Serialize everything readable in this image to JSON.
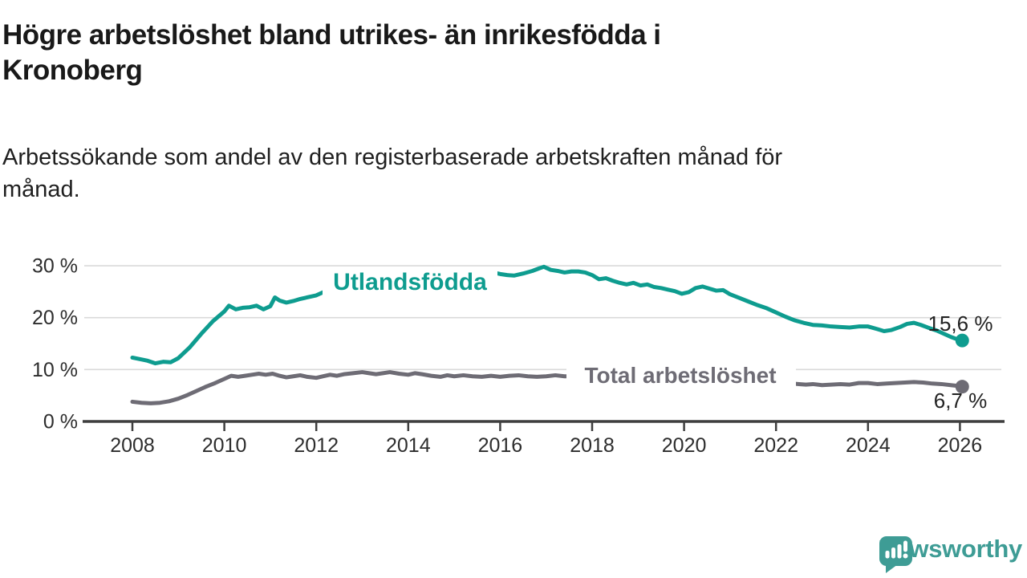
{
  "header": {
    "title_lines": [
      "Högre arbetslöshet bland utrikes- än inrikesfödda i",
      "Kronoberg"
    ],
    "subtitle_lines": [
      "Arbetssökande som andel av den registerbaserade arbetskraften månad för",
      "månad."
    ]
  },
  "chart_data": {
    "type": "line",
    "unit": "%",
    "grid": "horizontal-only",
    "grid_color": "#dadada",
    "axis_color": "#3e3e3e",
    "x_axis": {
      "min": 2008,
      "max": 2026.4,
      "ticks": [
        2008,
        2010,
        2012,
        2014,
        2016,
        2018,
        2020,
        2022,
        2024,
        2026
      ],
      "tick_labels": [
        "2008",
        "2010",
        "2012",
        "2014",
        "2016",
        "2018",
        "2020",
        "2022",
        "2024",
        "2026"
      ]
    },
    "y_axis": {
      "min": 0,
      "max": 31,
      "ticks": [
        0,
        10,
        20,
        30
      ],
      "tick_labels": [
        "0 %",
        "10 %",
        "20 %",
        "30 %"
      ]
    },
    "series": [
      {
        "name": "Utlandsfödda",
        "color": "#0E9C8F",
        "end_label": "15,6 %",
        "end_value": 15.6,
        "points": [
          [
            2008.0,
            12.3
          ],
          [
            2008.17,
            12.0
          ],
          [
            2008.33,
            11.7
          ],
          [
            2008.5,
            11.2
          ],
          [
            2008.67,
            11.5
          ],
          [
            2008.83,
            11.4
          ],
          [
            2009.0,
            12.2
          ],
          [
            2009.25,
            14.3
          ],
          [
            2009.5,
            16.9
          ],
          [
            2009.75,
            19.3
          ],
          [
            2010.0,
            21.2
          ],
          [
            2010.1,
            22.3
          ],
          [
            2010.25,
            21.6
          ],
          [
            2010.4,
            21.9
          ],
          [
            2010.55,
            22.0
          ],
          [
            2010.7,
            22.3
          ],
          [
            2010.85,
            21.6
          ],
          [
            2011.0,
            22.2
          ],
          [
            2011.1,
            23.9
          ],
          [
            2011.2,
            23.3
          ],
          [
            2011.35,
            22.9
          ],
          [
            2011.5,
            23.2
          ],
          [
            2011.65,
            23.6
          ],
          [
            2011.8,
            23.9
          ],
          [
            2012.0,
            24.3
          ],
          [
            2012.15,
            24.9
          ],
          [
            2012.3,
            25.4
          ],
          [
            2012.45,
            25.1
          ],
          [
            2012.7,
            25.3
          ],
          [
            2013.0,
            25.7
          ],
          [
            2013.5,
            26.1
          ],
          [
            2014.0,
            26.4
          ],
          [
            2014.5,
            26.8
          ],
          [
            2015.0,
            27.2
          ],
          [
            2015.4,
            27.6
          ],
          [
            2015.7,
            28.2
          ],
          [
            2015.85,
            28.7
          ],
          [
            2016.0,
            28.4
          ],
          [
            2016.15,
            28.2
          ],
          [
            2016.3,
            28.1
          ],
          [
            2016.5,
            28.5
          ],
          [
            2016.7,
            29.0
          ],
          [
            2016.85,
            29.5
          ],
          [
            2016.95,
            29.8
          ],
          [
            2017.1,
            29.2
          ],
          [
            2017.25,
            29.0
          ],
          [
            2017.4,
            28.7
          ],
          [
            2017.55,
            28.9
          ],
          [
            2017.7,
            28.9
          ],
          [
            2017.85,
            28.7
          ],
          [
            2018.0,
            28.2
          ],
          [
            2018.15,
            27.4
          ],
          [
            2018.3,
            27.6
          ],
          [
            2018.45,
            27.1
          ],
          [
            2018.6,
            26.7
          ],
          [
            2018.75,
            26.4
          ],
          [
            2018.9,
            26.7
          ],
          [
            2019.05,
            26.2
          ],
          [
            2019.2,
            26.4
          ],
          [
            2019.35,
            25.9
          ],
          [
            2019.5,
            25.7
          ],
          [
            2019.65,
            25.4
          ],
          [
            2019.8,
            25.1
          ],
          [
            2019.95,
            24.6
          ],
          [
            2020.1,
            24.9
          ],
          [
            2020.25,
            25.7
          ],
          [
            2020.4,
            26.0
          ],
          [
            2020.55,
            25.6
          ],
          [
            2020.7,
            25.2
          ],
          [
            2020.85,
            25.3
          ],
          [
            2021.0,
            24.5
          ],
          [
            2021.2,
            23.8
          ],
          [
            2021.4,
            23.1
          ],
          [
            2021.6,
            22.4
          ],
          [
            2021.8,
            21.8
          ],
          [
            2022.0,
            21.0
          ],
          [
            2022.2,
            20.2
          ],
          [
            2022.4,
            19.5
          ],
          [
            2022.6,
            19.0
          ],
          [
            2022.8,
            18.6
          ],
          [
            2023.0,
            18.5
          ],
          [
            2023.2,
            18.3
          ],
          [
            2023.4,
            18.2
          ],
          [
            2023.6,
            18.1
          ],
          [
            2023.8,
            18.3
          ],
          [
            2024.0,
            18.3
          ],
          [
            2024.2,
            17.8
          ],
          [
            2024.35,
            17.4
          ],
          [
            2024.5,
            17.6
          ],
          [
            2024.7,
            18.2
          ],
          [
            2024.85,
            18.8
          ],
          [
            2025.0,
            19.0
          ],
          [
            2025.15,
            18.6
          ],
          [
            2025.3,
            18.1
          ],
          [
            2025.5,
            17.5
          ],
          [
            2025.65,
            16.9
          ],
          [
            2025.8,
            16.3
          ],
          [
            2025.95,
            15.8
          ],
          [
            2026.05,
            15.6
          ]
        ]
      },
      {
        "name": "Total arbetslöshet",
        "color": "#6E6C75",
        "end_label": "6,7 %",
        "end_value": 6.7,
        "points": [
          [
            2008.0,
            3.8
          ],
          [
            2008.2,
            3.6
          ],
          [
            2008.4,
            3.5
          ],
          [
            2008.6,
            3.6
          ],
          [
            2008.8,
            3.9
          ],
          [
            2009.0,
            4.4
          ],
          [
            2009.2,
            5.1
          ],
          [
            2009.4,
            5.9
          ],
          [
            2009.6,
            6.7
          ],
          [
            2009.8,
            7.4
          ],
          [
            2010.0,
            8.2
          ],
          [
            2010.15,
            8.8
          ],
          [
            2010.3,
            8.6
          ],
          [
            2010.45,
            8.8
          ],
          [
            2010.6,
            9.0
          ],
          [
            2010.75,
            9.2
          ],
          [
            2010.9,
            9.0
          ],
          [
            2011.05,
            9.2
          ],
          [
            2011.2,
            8.8
          ],
          [
            2011.35,
            8.5
          ],
          [
            2011.5,
            8.7
          ],
          [
            2011.65,
            8.9
          ],
          [
            2011.8,
            8.6
          ],
          [
            2012.0,
            8.4
          ],
          [
            2012.15,
            8.7
          ],
          [
            2012.3,
            9.0
          ],
          [
            2012.45,
            8.8
          ],
          [
            2012.6,
            9.1
          ],
          [
            2012.8,
            9.3
          ],
          [
            2013.0,
            9.5
          ],
          [
            2013.15,
            9.3
          ],
          [
            2013.3,
            9.1
          ],
          [
            2013.45,
            9.3
          ],
          [
            2013.6,
            9.5
          ],
          [
            2013.8,
            9.2
          ],
          [
            2014.0,
            9.0
          ],
          [
            2014.15,
            9.3
          ],
          [
            2014.3,
            9.1
          ],
          [
            2014.5,
            8.8
          ],
          [
            2014.7,
            8.6
          ],
          [
            2014.85,
            8.9
          ],
          [
            2015.0,
            8.7
          ],
          [
            2015.2,
            8.9
          ],
          [
            2015.4,
            8.7
          ],
          [
            2015.6,
            8.6
          ],
          [
            2015.8,
            8.8
          ],
          [
            2016.0,
            8.6
          ],
          [
            2016.2,
            8.8
          ],
          [
            2016.4,
            8.9
          ],
          [
            2016.6,
            8.7
          ],
          [
            2016.8,
            8.6
          ],
          [
            2017.0,
            8.7
          ],
          [
            2017.2,
            8.9
          ],
          [
            2017.4,
            8.7
          ],
          [
            2017.6,
            8.7
          ],
          [
            2018.0,
            8.4
          ],
          [
            2018.5,
            8.2
          ],
          [
            2019.0,
            8.0
          ],
          [
            2019.5,
            7.9
          ],
          [
            2020.0,
            8.2
          ],
          [
            2020.3,
            8.8
          ],
          [
            2020.6,
            8.6
          ],
          [
            2021.0,
            8.3
          ],
          [
            2021.5,
            7.9
          ],
          [
            2022.0,
            7.5
          ],
          [
            2022.35,
            7.3
          ],
          [
            2022.5,
            7.2
          ],
          [
            2022.65,
            7.1
          ],
          [
            2022.8,
            7.2
          ],
          [
            2023.0,
            7.0
          ],
          [
            2023.2,
            7.1
          ],
          [
            2023.4,
            7.2
          ],
          [
            2023.6,
            7.1
          ],
          [
            2023.8,
            7.4
          ],
          [
            2024.0,
            7.4
          ],
          [
            2024.2,
            7.2
          ],
          [
            2024.4,
            7.3
          ],
          [
            2024.6,
            7.4
          ],
          [
            2024.8,
            7.5
          ],
          [
            2025.0,
            7.6
          ],
          [
            2025.2,
            7.5
          ],
          [
            2025.4,
            7.3
          ],
          [
            2025.6,
            7.2
          ],
          [
            2025.8,
            7.0
          ],
          [
            2026.0,
            6.8
          ],
          [
            2026.05,
            6.7
          ]
        ]
      }
    ]
  },
  "branding": {
    "name": "Newsworthy",
    "color": "#3E9C95",
    "icon": "newsworthy-speech-bubble-bar-chart-icon"
  }
}
